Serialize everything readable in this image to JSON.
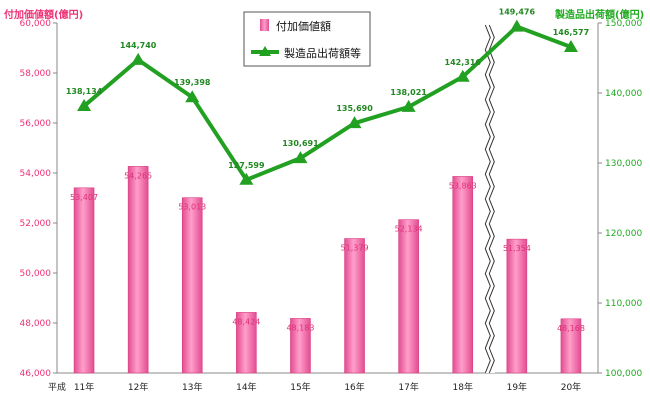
{
  "chart_data": {
    "type": "bar",
    "categories": [
      "11年",
      "12年",
      "13年",
      "14年",
      "15年",
      "16年",
      "17年",
      "18年",
      "19年",
      "20年"
    ],
    "era_label": "平成",
    "y_left_label": "付加価値額(億円)",
    "y_right_label": "製造品出荷額(億円)",
    "y_left_lim": [
      46000,
      60000
    ],
    "y_left_ticks": [
      "46,000",
      "48,000",
      "50,000",
      "52,000",
      "54,000",
      "56,000",
      "58,000",
      "60,000"
    ],
    "y_right_lim": [
      100000,
      150000
    ],
    "y_right_ticks": [
      "100,000",
      "110,000",
      "120,000",
      "130,000",
      "140,000",
      "150,000"
    ],
    "series": [
      {
        "name": "付加価値額",
        "type": "bar",
        "axis": "left",
        "color": "#f06aa8",
        "values": [
          53407,
          54265,
          53013,
          48424,
          48183,
          51379,
          52134,
          53863,
          51354,
          48168
        ],
        "labels": [
          "53,407",
          "54,265",
          "53,013",
          "48,424",
          "48,183",
          "51,379",
          "52,134",
          "53,863",
          "51,354",
          "48,168"
        ]
      },
      {
        "name": "製造品出荷額等",
        "type": "line",
        "axis": "right",
        "color": "#22a022",
        "values": [
          138134,
          144740,
          139398,
          127599,
          130691,
          135690,
          138021,
          142316,
          149476,
          146577
        ],
        "labels": [
          "138,134",
          "144,740",
          "139,398",
          "127,599",
          "130,691",
          "135,690",
          "138,021",
          "142,316",
          "149,476",
          "146,577"
        ]
      }
    ],
    "axis_break_between": [
      "18年",
      "19年"
    ],
    "legend_position": "top-center",
    "grid": false
  }
}
